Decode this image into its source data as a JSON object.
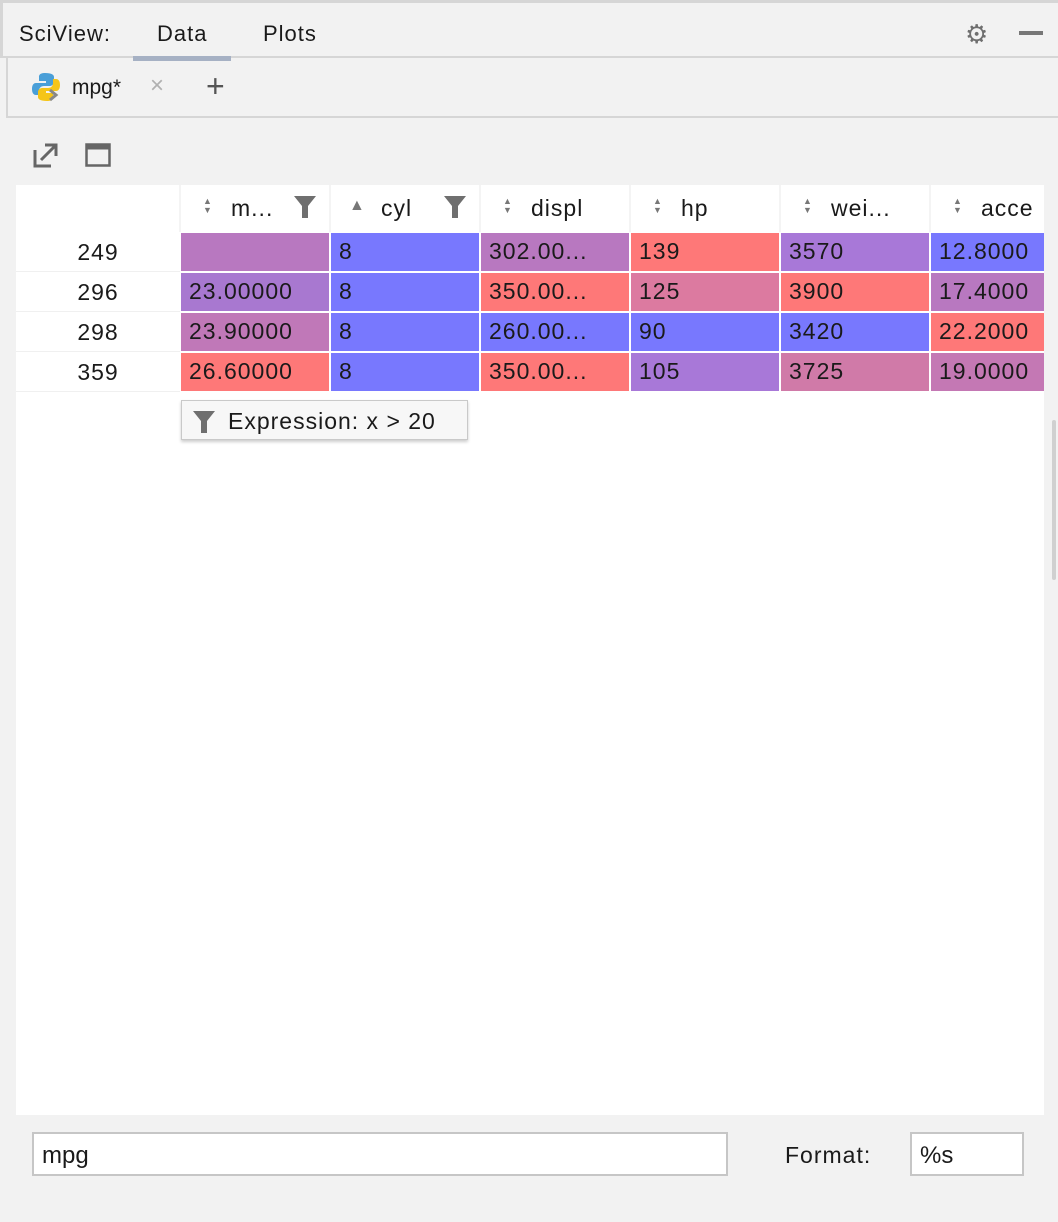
{
  "header": {
    "label": "SciView:",
    "tabs": [
      {
        "label": "Data",
        "active": true
      },
      {
        "label": "Plots",
        "active": false
      }
    ],
    "icons": [
      "gear-icon",
      "minimize-icon"
    ]
  },
  "file_tabs": {
    "items": [
      {
        "label": "mpg*",
        "icon": "python-icon"
      }
    ],
    "close_icon": "×",
    "add_icon": "+"
  },
  "toolbar": {
    "icons": [
      "open-in-new-window-icon",
      "maximize-icon"
    ]
  },
  "table": {
    "columns": [
      {
        "label": "m...",
        "sort": "none",
        "filter": true
      },
      {
        "label": "cyl",
        "sort": "ascending",
        "filter": true
      },
      {
        "label": "displ",
        "sort": "none"
      },
      {
        "label": "hp",
        "sort": "none"
      },
      {
        "label": "wei...",
        "sort": "none"
      },
      {
        "label": "acce",
        "sort": "none"
      }
    ],
    "rows": [
      {
        "index": "249",
        "cells": [
          {
            "v": "",
            "c": "#b878c0"
          },
          {
            "v": "8",
            "c": "#7878fe"
          },
          {
            "v": "302.00...",
            "c": "#b878c0"
          },
          {
            "v": "139",
            "c": "#fe7878"
          },
          {
            "v": "3570",
            "c": "#a878d8"
          },
          {
            "v": "12.8000",
            "c": "#7878fe"
          }
        ]
      },
      {
        "index": "296",
        "cells": [
          {
            "v": "23.00000",
            "c": "#a878d0"
          },
          {
            "v": "8",
            "c": "#7878fe"
          },
          {
            "v": "350.00...",
            "c": "#fe7878"
          },
          {
            "v": "125",
            "c": "#dc7aa0"
          },
          {
            "v": "3900",
            "c": "#fe7878"
          },
          {
            "v": "17.4000",
            "c": "#b878c0"
          }
        ]
      },
      {
        "index": "298",
        "cells": [
          {
            "v": "23.90000",
            "c": "#c078b8"
          },
          {
            "v": "8",
            "c": "#7878fe"
          },
          {
            "v": "260.00...",
            "c": "#7878fe"
          },
          {
            "v": "90",
            "c": "#7878fe"
          },
          {
            "v": "3420",
            "c": "#7878fe"
          },
          {
            "v": "22.2000",
            "c": "#fe7878"
          }
        ]
      },
      {
        "index": "359",
        "cells": [
          {
            "v": "26.60000",
            "c": "#fe7878"
          },
          {
            "v": "8",
            "c": "#7878fe"
          },
          {
            "v": "350.00...",
            "c": "#fe7878"
          },
          {
            "v": "105",
            "c": "#a878d8"
          },
          {
            "v": "3725",
            "c": "#d07aa8"
          },
          {
            "v": "19.0000",
            "c": "#c478b4"
          }
        ]
      }
    ]
  },
  "tooltip": {
    "text": "Expression: x > 20",
    "icon": "filter-icon"
  },
  "footer": {
    "name_value": "mpg",
    "format_label": "Format:",
    "format_value": "%s"
  }
}
